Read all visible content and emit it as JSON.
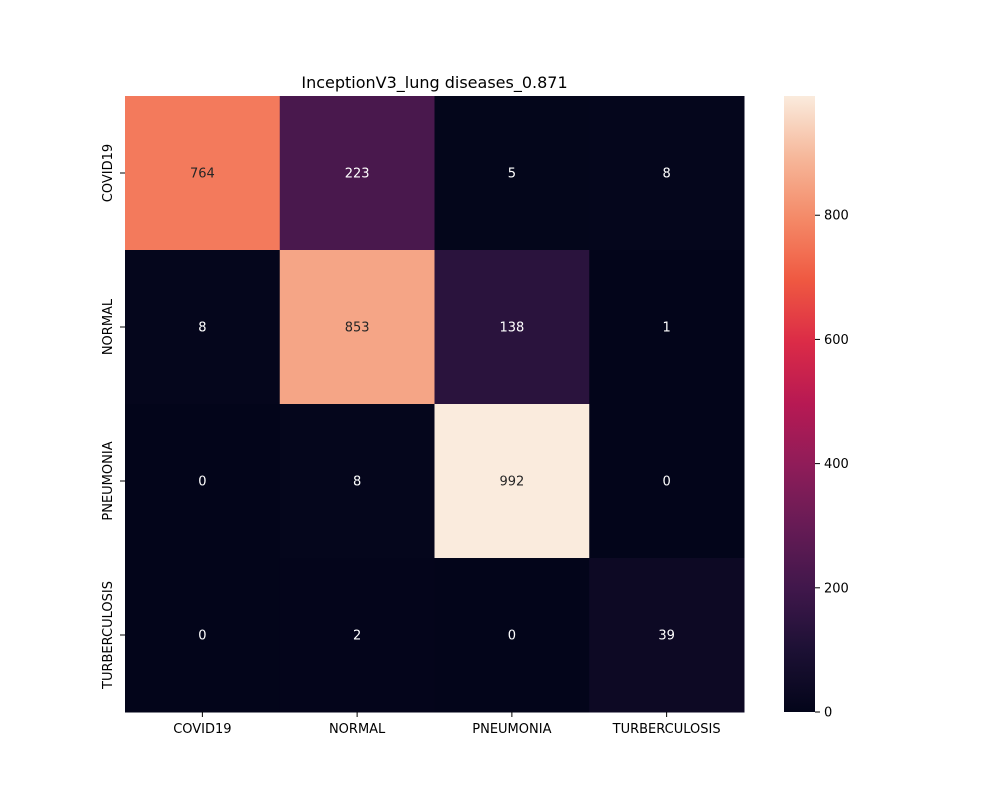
{
  "chart_data": {
    "type": "heatmap",
    "title": "InceptionV3_lung diseases_0.871",
    "xlabel": "",
    "ylabel": "",
    "x_categories": [
      "COVID19",
      "NORMAL",
      "PNEUMONIA",
      "TURBERCULOSIS"
    ],
    "y_categories": [
      "COVID19",
      "NORMAL",
      "PNEUMONIA",
      "TURBERCULOSIS"
    ],
    "values": [
      [
        764,
        223,
        5,
        8
      ],
      [
        8,
        853,
        138,
        1
      ],
      [
        0,
        8,
        992,
        0
      ],
      [
        0,
        2,
        0,
        39
      ]
    ],
    "colorbar": {
      "min": 0,
      "max": 992,
      "ticks": [
        0,
        200,
        400,
        600,
        800
      ],
      "colormap": "rocket"
    },
    "grid": false
  }
}
